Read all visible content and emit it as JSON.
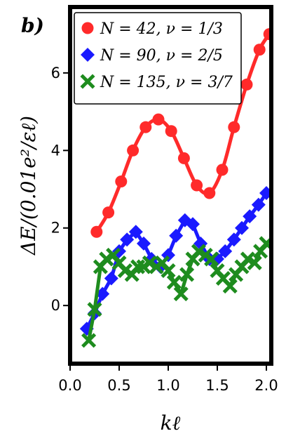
{
  "panel_label": "b)",
  "chart_data": {
    "type": "line",
    "xlabel": "kℓ",
    "ylabel": "ΔE/(0.01e²/εℓ)",
    "xlim": [
      0.0,
      2.05
    ],
    "ylim": [
      -1.5,
      7.7
    ],
    "xticks": [
      0.0,
      0.5,
      1.0,
      1.5,
      2.0
    ],
    "xtick_labels": [
      "0.0",
      "0.5",
      "1.0",
      "1.5",
      "2.0"
    ],
    "yticks": [
      0,
      2,
      4,
      6
    ],
    "ytick_labels": [
      "0",
      "2",
      "4",
      "6"
    ],
    "legend_position": "top-left",
    "grid": false,
    "series": [
      {
        "name": "N = 42, ν = 1/3",
        "color": "#ff2a2a",
        "marker": "circle",
        "x": [
          0.27,
          0.39,
          0.52,
          0.64,
          0.77,
          0.9,
          1.03,
          1.16,
          1.29,
          1.42,
          1.55,
          1.67,
          1.8,
          1.93,
          2.03
        ],
        "y": [
          1.9,
          2.4,
          3.2,
          4.0,
          4.6,
          4.8,
          4.5,
          3.8,
          3.1,
          2.9,
          3.5,
          4.6,
          5.7,
          6.6,
          7.0
        ]
      },
      {
        "name": "N = 90, ν = 2/5",
        "color": "#1a1aff",
        "marker": "diamond",
        "x": [
          0.17,
          0.25,
          0.33,
          0.42,
          0.5,
          0.58,
          0.67,
          0.75,
          0.83,
          0.92,
          1.0,
          1.08,
          1.17,
          1.25,
          1.33,
          1.42,
          1.5,
          1.58,
          1.67,
          1.75,
          1.83,
          1.92,
          2.0
        ],
        "y": [
          -0.6,
          -0.2,
          0.3,
          0.7,
          1.4,
          1.7,
          1.9,
          1.6,
          1.2,
          1.0,
          1.3,
          1.8,
          2.2,
          2.1,
          1.6,
          1.2,
          1.2,
          1.4,
          1.7,
          2.0,
          2.3,
          2.6,
          2.9
        ]
      },
      {
        "name": "N = 135, ν = 3/7",
        "color": "#1e8c1e",
        "marker": "x",
        "x": [
          0.19,
          0.25,
          0.31,
          0.37,
          0.44,
          0.5,
          0.56,
          0.63,
          0.69,
          0.75,
          0.81,
          0.88,
          0.94,
          1.0,
          1.06,
          1.13,
          1.19,
          1.25,
          1.31,
          1.38,
          1.44,
          1.5,
          1.56,
          1.63,
          1.69,
          1.75,
          1.81,
          1.88,
          1.94,
          2.0
        ],
        "y": [
          -0.9,
          -0.1,
          1.0,
          1.2,
          1.3,
          1.1,
          0.9,
          0.8,
          1.0,
          1.0,
          1.1,
          1.0,
          1.1,
          0.9,
          0.6,
          0.3,
          0.8,
          1.2,
          1.4,
          1.3,
          1.2,
          0.9,
          0.7,
          0.5,
          0.8,
          1.0,
          1.2,
          1.1,
          1.4,
          1.6
        ]
      }
    ]
  }
}
